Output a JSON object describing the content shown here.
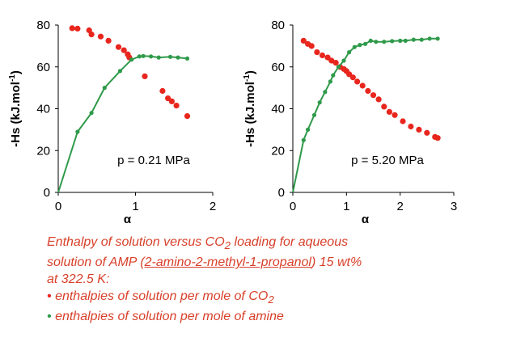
{
  "colors": {
    "co2": "#e8261e",
    "amine": "#2f9a4a",
    "caption": "#d8402a",
    "axis": "#000000"
  },
  "chart_data": [
    {
      "type": "scatter",
      "title": "",
      "ylabel": "-Hs (kJ.mol-1)",
      "xlabel": "α",
      "xlim": [
        0,
        2
      ],
      "ylim": [
        0,
        80
      ],
      "xticks": [
        0,
        1,
        2
      ],
      "yticks": [
        0,
        20,
        40,
        60,
        80
      ],
      "annotation": "p = 0.21 MPa",
      "series": [
        {
          "name": "enthalpies of solution per mole of CO2",
          "color": "#e8261e",
          "x": [
            0.18,
            0.25,
            0.4,
            0.43,
            0.55,
            0.65,
            0.78,
            0.85,
            0.9,
            0.92,
            1.12,
            1.35,
            1.42,
            1.47,
            1.53,
            1.67
          ],
          "y": [
            78.5,
            78.3,
            77.5,
            75.5,
            74.5,
            72.5,
            69.5,
            68.0,
            66.0,
            64.5,
            55.5,
            48.5,
            45.0,
            43.5,
            41.5,
            36.5
          ]
        },
        {
          "name": "enthalpies of solution per mole of amine",
          "color": "#2f9a4a",
          "x": [
            0.25,
            0.43,
            0.6,
            0.8,
            0.95,
            1.05,
            1.1,
            1.2,
            1.3,
            1.45,
            1.55,
            1.67
          ],
          "y": [
            29,
            38,
            50,
            58,
            63.5,
            65.0,
            65.2,
            65.0,
            64.5,
            64.8,
            64.5,
            64.0
          ]
        }
      ]
    },
    {
      "type": "scatter",
      "title": "",
      "ylabel": "-Hs (kJ.mol-1)",
      "xlabel": "α",
      "xlim": [
        0,
        3
      ],
      "ylim": [
        0,
        80
      ],
      "xticks": [
        0,
        1,
        2,
        3
      ],
      "yticks": [
        0,
        20,
        40,
        60,
        80
      ],
      "annotation": "p = 5.20 MPa",
      "series": [
        {
          "name": "enthalpies of solution per mole of CO2",
          "color": "#e8261e",
          "x": [
            0.2,
            0.28,
            0.35,
            0.45,
            0.55,
            0.65,
            0.72,
            0.8,
            0.88,
            0.95,
            1.0,
            1.05,
            1.12,
            1.2,
            1.3,
            1.4,
            1.5,
            1.6,
            1.7,
            1.8,
            1.9,
            2.05,
            2.2,
            2.35,
            2.5,
            2.65,
            2.7
          ],
          "y": [
            72.5,
            71.0,
            70.0,
            67.0,
            65.5,
            64.5,
            63.0,
            62.0,
            60.0,
            59.0,
            58.0,
            56.5,
            55.0,
            53.0,
            51.0,
            48.5,
            46.5,
            44.5,
            41.0,
            38.5,
            37.0,
            34.0,
            31.5,
            30.0,
            28.5,
            26.5,
            26.0
          ]
        },
        {
          "name": "enthalpies of solution per mole of amine",
          "color": "#2f9a4a",
          "x": [
            0.2,
            0.28,
            0.4,
            0.5,
            0.6,
            0.7,
            0.75,
            0.85,
            0.95,
            1.05,
            1.15,
            1.25,
            1.35,
            1.45,
            1.55,
            1.7,
            1.85,
            2.0,
            2.1,
            2.25,
            2.4,
            2.55,
            2.7
          ],
          "y": [
            25,
            30,
            37,
            43,
            48,
            53,
            56,
            60,
            63,
            67,
            69.5,
            70.5,
            71.0,
            72.5,
            72.0,
            72.0,
            72.3,
            72.5,
            72.5,
            73.0,
            73.0,
            73.5,
            73.5
          ]
        }
      ]
    }
  ],
  "caption": {
    "line1_pre": "Enthalpy of solution versus CO",
    "line1_sub": "2",
    "line1_post": " loading for aqueous",
    "line2_pre": "solution of AMP (",
    "line2_u": "2-amino-2-methyl-1-propanol",
    "line2_post": ") 15 wt%",
    "line3": "at 322.5 K:",
    "bullet1_pre": "enthalpies of solution per mole of  CO",
    "bullet1_sub": "2",
    "bullet2": "enthalpies of solution per mole of amine"
  }
}
